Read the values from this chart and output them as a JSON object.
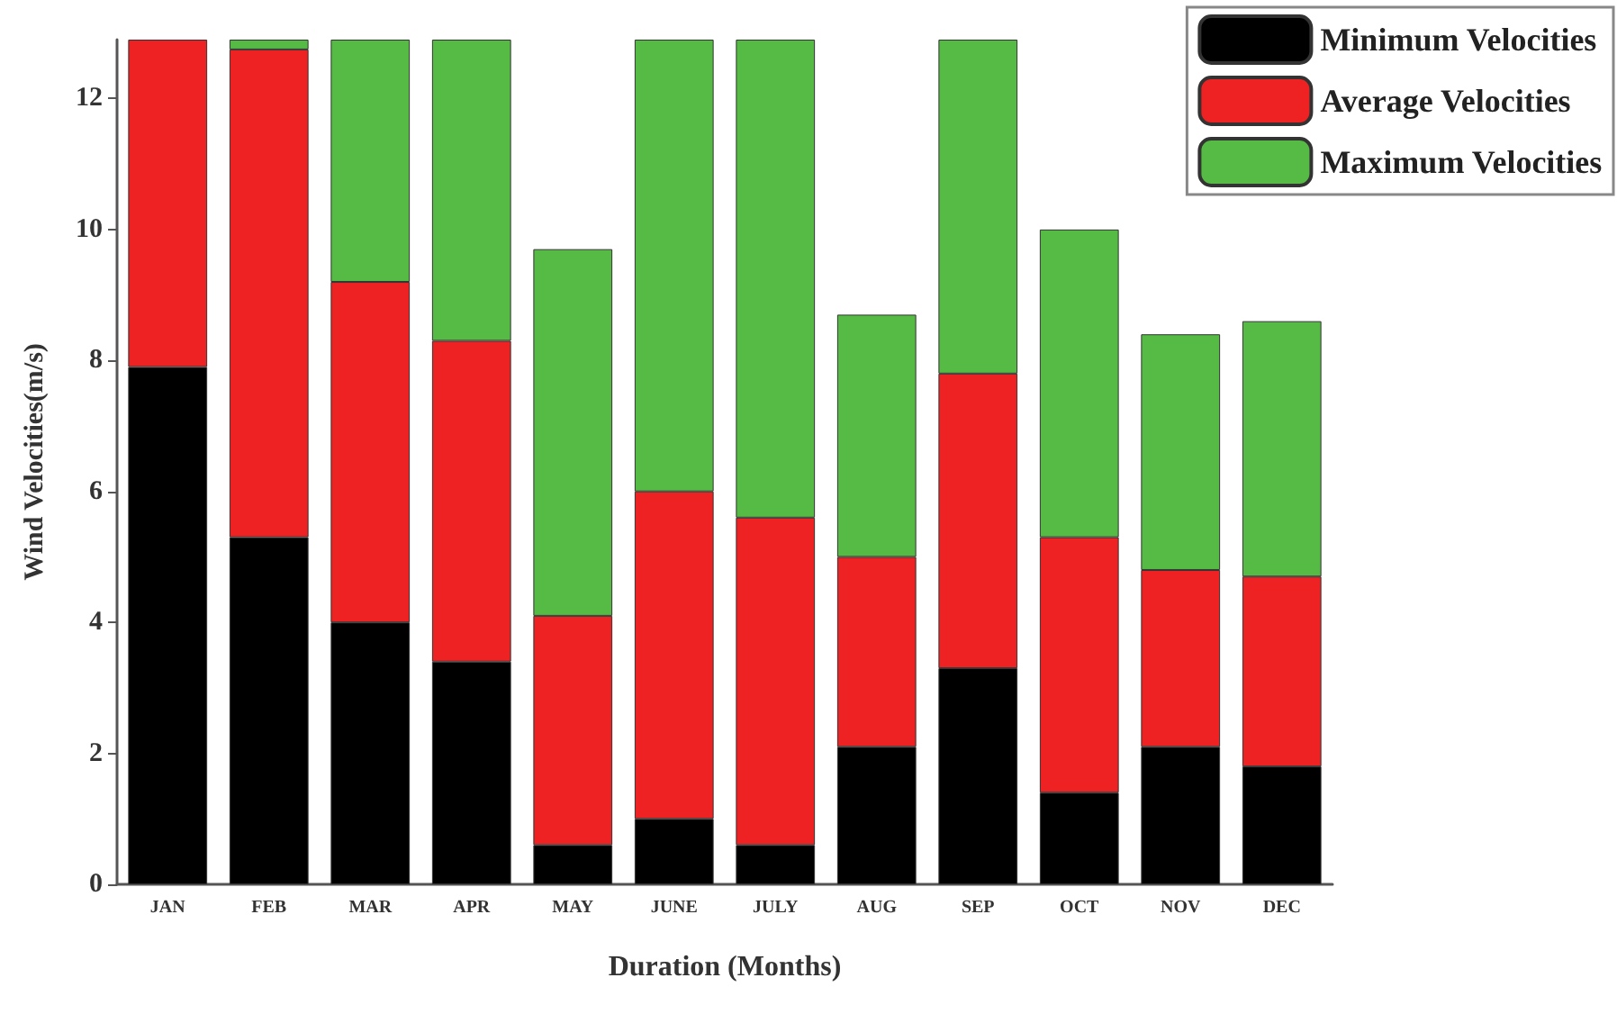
{
  "chart_data": {
    "type": "bar",
    "xlabel": "Duration (Months)",
    "ylabel": "Wind Velocities(m/s)",
    "categories": [
      "JAN",
      "FEB",
      "MAR",
      "APR",
      "MAY",
      "JUNE",
      "JULY",
      "AUG",
      "SEP",
      "OCT",
      "NOV",
      "DEC"
    ],
    "stacked": true,
    "series": [
      {
        "name": "Minimum Velocities",
        "color": "#000000",
        "values": [
          7.9,
          5.3,
          4.0,
          3.4,
          0.6,
          1.0,
          0.6,
          2.1,
          3.3,
          1.4,
          2.1,
          1.8
        ]
      },
      {
        "name": "Average Velocities",
        "color": "#ee2222",
        "values": [
          5.0,
          7.45,
          5.2,
          4.9,
          3.5,
          5.0,
          5.0,
          2.9,
          4.5,
          3.9,
          2.7,
          2.9
        ]
      },
      {
        "name": "Maximum Velocities",
        "color": "#55bb44",
        "values": [
          null,
          0.15,
          3.7,
          4.6,
          5.6,
          6.9,
          7.3,
          3.7,
          5.1,
          4.7,
          3.6,
          3.9
        ]
      }
    ],
    "ylim": [
      0,
      12.9
    ],
    "yticks": [
      0,
      2,
      4,
      6,
      8,
      10,
      12
    ],
    "grid": false,
    "legend": "top right"
  }
}
